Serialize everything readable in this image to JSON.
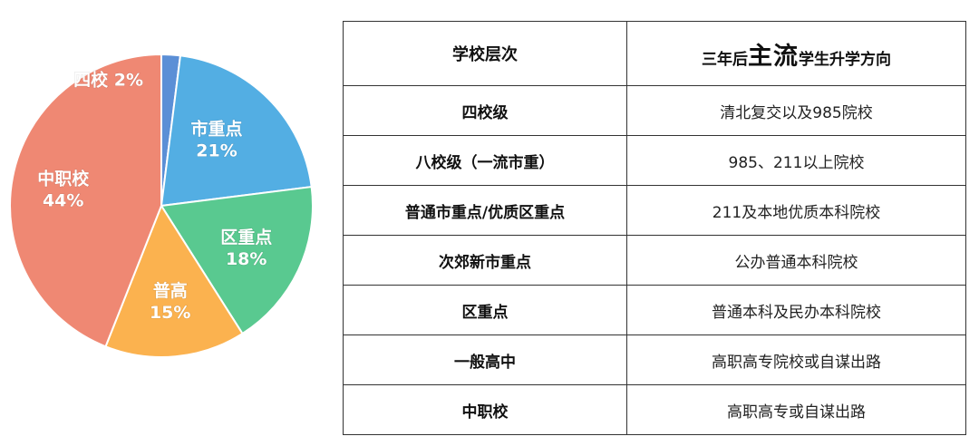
{
  "chart_data": {
    "type": "pie",
    "slices": [
      {
        "label": "四校",
        "value": 2,
        "value_label": "2%",
        "color": "#5b8fd6"
      },
      {
        "label": "市重点",
        "value": 21,
        "value_label": "21%",
        "color": "#53aee3"
      },
      {
        "label": "区重点",
        "value": 18,
        "value_label": "18%",
        "color": "#59c990"
      },
      {
        "label": "普高",
        "value": 15,
        "value_label": "15%",
        "color": "#fbb24f"
      },
      {
        "label": "中职校",
        "value": 44,
        "value_label": "44%",
        "color": "#ef8873"
      }
    ]
  },
  "table": {
    "header": {
      "col1": "学校层次",
      "col2_prefix": "三年后",
      "col2_emphasis": "主流",
      "col2_suffix": "学生升学方向"
    },
    "rows": [
      {
        "level": "四校级",
        "direction": "清北复交以及985院校"
      },
      {
        "level": "八校级（一流市重）",
        "direction": "985、211以上院校"
      },
      {
        "level": "普通市重点/优质区重点",
        "direction": "211及本地优质本科院校"
      },
      {
        "level": "次郊新市重点",
        "direction": "公办普通本科院校"
      },
      {
        "level": "区重点",
        "direction": "普通本科及民办本科院校"
      },
      {
        "level": "一般高中",
        "direction": "高职高专院校或自谋出路"
      },
      {
        "level": "中职校",
        "direction": "高职高专或自谋出路"
      }
    ]
  }
}
